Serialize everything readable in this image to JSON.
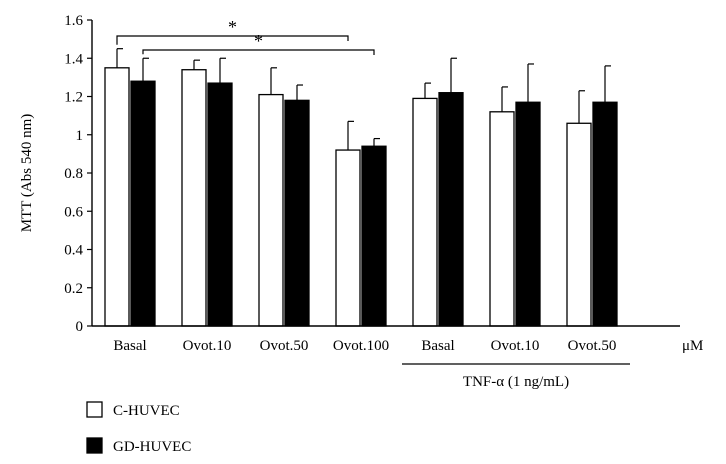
{
  "chart_data": {
    "type": "bar",
    "ylabel": "MTT (Abs 540 nm)",
    "ylim": [
      0,
      1.6
    ],
    "yticks": [
      0,
      0.2,
      0.4,
      0.6,
      0.8,
      1,
      1.2,
      1.4,
      1.6
    ],
    "ytick_labels": [
      "0",
      "0.2",
      "0.4",
      "0.6",
      "0.8",
      "1",
      "1.2",
      "1.4",
      "1.6"
    ],
    "categories": [
      "Basal",
      "Ovot.10",
      "Ovot.50",
      "Ovot.100",
      "Basal",
      "Ovot.10",
      "Ovot.50"
    ],
    "unit_label": "μM",
    "group_label": "TNF-α (1 ng/mL)",
    "group_span": [
      4,
      6
    ],
    "series": [
      {
        "name": "C-HUVEC",
        "color": "#ffffff",
        "values": [
          1.35,
          1.34,
          1.21,
          0.92,
          1.19,
          1.12,
          1.06
        ],
        "errors": [
          0.1,
          0.05,
          0.14,
          0.15,
          0.08,
          0.13,
          0.17
        ]
      },
      {
        "name": "GD-HUVEC",
        "color": "#000000",
        "values": [
          1.28,
          1.27,
          1.18,
          0.94,
          1.22,
          1.17,
          1.17
        ],
        "errors": [
          0.12,
          0.13,
          0.08,
          0.04,
          0.18,
          0.2,
          0.19
        ]
      }
    ],
    "significance": [
      {
        "from": [
          0,
          0
        ],
        "to": [
          3,
          0
        ],
        "label": "*"
      },
      {
        "from": [
          0,
          1
        ],
        "to": [
          3,
          1
        ],
        "label": "*"
      }
    ],
    "legend_position": "bottom-left",
    "grid": false
  }
}
